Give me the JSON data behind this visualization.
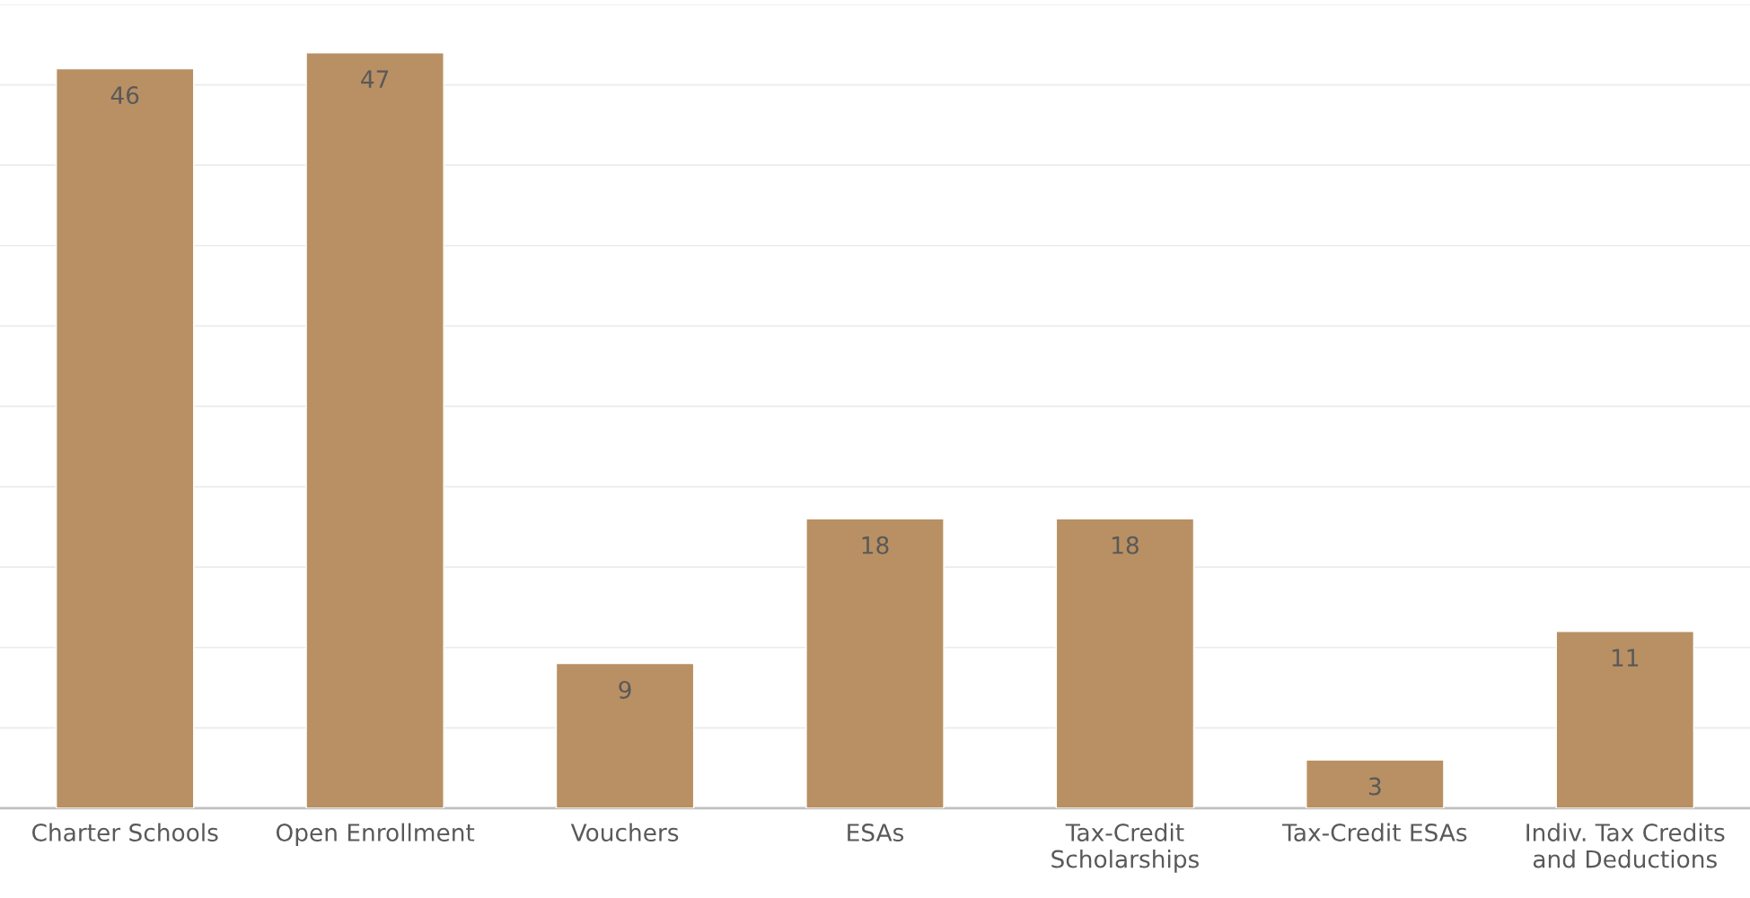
{
  "chart_data": {
    "type": "bar",
    "categories": [
      "Charter Schools",
      "Open Enrollment",
      "Vouchers",
      "ESAs",
      "Tax-Credit\nScholarships",
      "Tax-Credit ESAs",
      "Indiv. Tax Credits\nand Deductions"
    ],
    "values": [
      46,
      47,
      9,
      18,
      18,
      3,
      11
    ],
    "color": "#b99063",
    "ylim": [
      0,
      50
    ],
    "yticks": [
      {
        "value": 0,
        "label": null
      },
      {
        "value": 5,
        "label": null
      },
      {
        "value": 10,
        "label": null
      },
      {
        "value": 15,
        "label": null
      },
      {
        "value": 20,
        "label": null
      },
      {
        "value": 25,
        "label": null
      },
      {
        "value": 30,
        "label": null
      },
      {
        "value": 35,
        "label": null
      },
      {
        "value": 40,
        "label": null
      },
      {
        "value": 45,
        "label": null
      },
      {
        "value": 50,
        "label": null
      }
    ],
    "tick_labels": "x",
    "grid": "y",
    "data_labels": true
  }
}
